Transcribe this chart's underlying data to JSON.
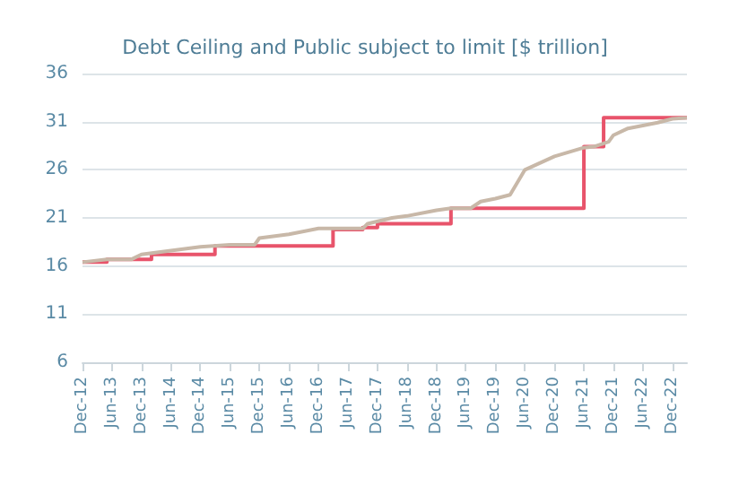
{
  "chart_data": {
    "type": "line",
    "title": "Debt Ceiling and Public subject to limit [$ trillion]",
    "xlim": [
      "2012-12",
      "2023-03"
    ],
    "xticks": [
      {
        "value": "2012-12",
        "label": "Dec-12"
      },
      {
        "value": "2013-06",
        "label": "Jun-13"
      },
      {
        "value": "2013-12",
        "label": "Dec-13"
      },
      {
        "value": "2014-06",
        "label": "Jun-14"
      },
      {
        "value": "2014-12",
        "label": "Dec-14"
      },
      {
        "value": "2015-06",
        "label": "Jun-15"
      },
      {
        "value": "2015-12",
        "label": "Dec-15"
      },
      {
        "value": "2016-06",
        "label": "Jun-16"
      },
      {
        "value": "2016-12",
        "label": "Dec-16"
      },
      {
        "value": "2017-06",
        "label": "Jun-17"
      },
      {
        "value": "2017-12",
        "label": "Dec-17"
      },
      {
        "value": "2018-06",
        "label": "Jun-18"
      },
      {
        "value": "2018-12",
        "label": "Dec-18"
      },
      {
        "value": "2019-06",
        "label": "Jun-19"
      },
      {
        "value": "2019-12",
        "label": "Dec-19"
      },
      {
        "value": "2020-06",
        "label": "Jun-20"
      },
      {
        "value": "2020-12",
        "label": "Dec-20"
      },
      {
        "value": "2021-06",
        "label": "Jun-21"
      },
      {
        "value": "2021-12",
        "label": "Dec-21"
      },
      {
        "value": "2022-06",
        "label": "Jun-22"
      },
      {
        "value": "2022-12",
        "label": "Dec-22"
      }
    ],
    "ylim": [
      6,
      36
    ],
    "yticks": [
      6,
      11,
      16,
      21,
      26,
      31,
      36
    ],
    "grid": "y",
    "series": [
      {
        "type": "step",
        "color": "#e8546b",
        "x": [
          "2012-12",
          "2013-05",
          "2013-10",
          "2014-02",
          "2015-03",
          "2017-03",
          "2017-09",
          "2017-12",
          "2019-03",
          "2021-06",
          "2021-10",
          "2023-03"
        ],
        "values": [
          16.4,
          16.7,
          16.7,
          17.2,
          18.1,
          19.8,
          20.0,
          20.4,
          22.0,
          28.4,
          31.4,
          31.4
        ]
      },
      {
        "color": "#c8b8a8",
        "x": [
          "2012-12",
          "2013-05",
          "2013-10",
          "2013-12",
          "2014-06",
          "2014-12",
          "2015-06",
          "2015-11",
          "2015-12",
          "2016-06",
          "2016-12",
          "2017-03",
          "2017-09",
          "2017-10",
          "2018-03",
          "2018-06",
          "2018-12",
          "2019-03",
          "2019-07",
          "2019-09",
          "2019-12",
          "2020-03",
          "2020-06",
          "2020-12",
          "2021-06",
          "2021-08",
          "2021-11",
          "2021-12",
          "2022-03",
          "2022-09",
          "2022-12",
          "2023-03"
        ],
        "values": [
          16.4,
          16.7,
          16.7,
          17.2,
          17.6,
          18.0,
          18.2,
          18.2,
          18.9,
          19.3,
          19.9,
          19.9,
          19.9,
          20.4,
          21.0,
          21.2,
          21.8,
          22.0,
          22.0,
          22.7,
          23.0,
          23.4,
          26.0,
          27.4,
          28.3,
          28.4,
          28.9,
          29.6,
          30.3,
          30.9,
          31.3,
          31.4
        ]
      }
    ]
  }
}
